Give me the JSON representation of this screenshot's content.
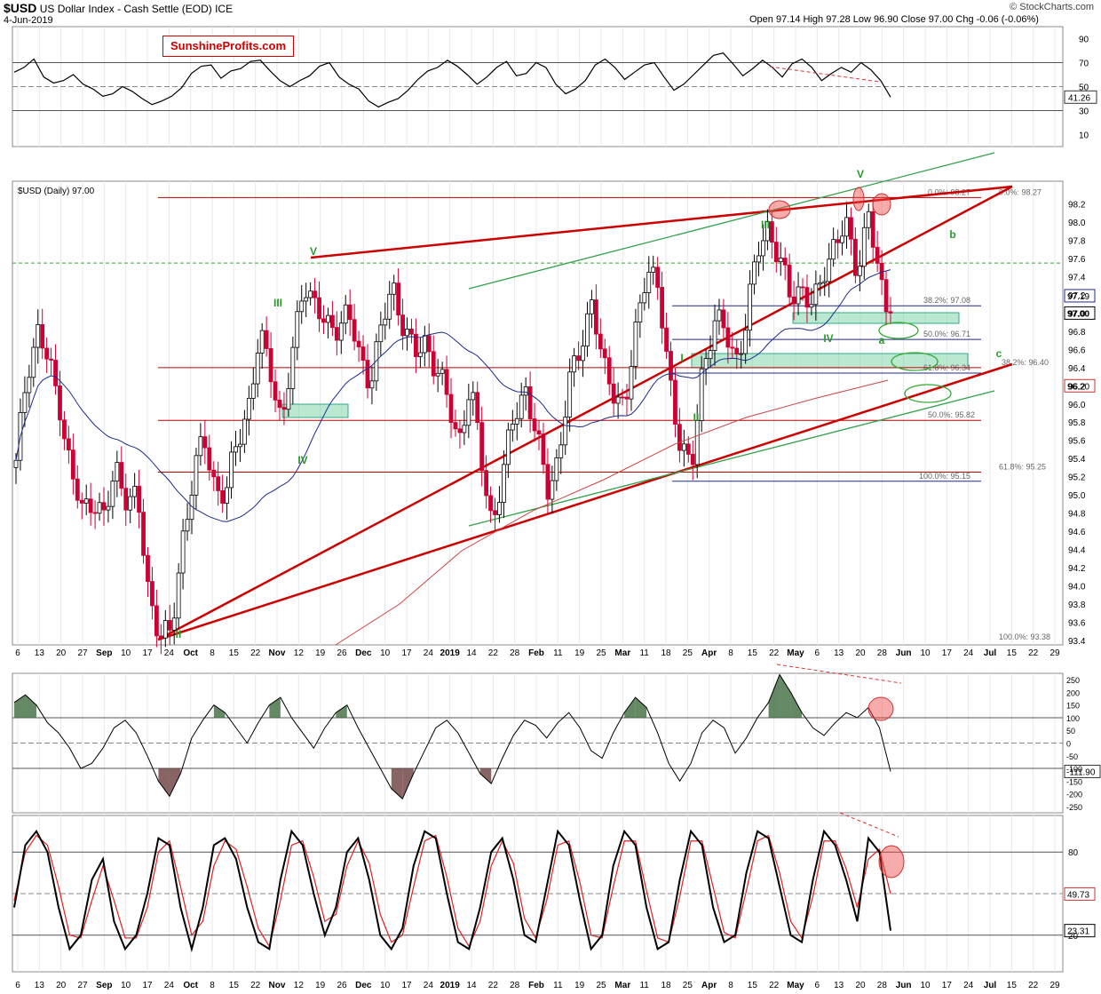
{
  "header": {
    "symbol": "$USD",
    "name": "US Dollar Index - Cash Settle (EOD)  ICE",
    "date": "4-Jun-2019",
    "ohlc": "Open 97.14  High 97.28  Low 96.90  Close 97.00  Chg -0.06 (-0.06%)",
    "credit": "© StockCharts.com",
    "brand": "SunshineProfits.com",
    "price_legend": "$USD (Daily) 97.00"
  },
  "x_axis_labels": [
    "6",
    "13",
    "20",
    "27",
    "Sep",
    "10",
    "17",
    "24",
    "Oct",
    "8",
    "15",
    "22",
    "Nov",
    "12",
    "19",
    "26",
    "Dec",
    "10",
    "17",
    "24",
    "2019",
    "14",
    "22",
    "28",
    "Feb",
    "11",
    "19",
    "25",
    "Mar",
    "11",
    "18",
    "25",
    "Apr",
    "8",
    "15",
    "22",
    "May",
    "6",
    "13",
    "20",
    "28",
    "Jun",
    "10",
    "17",
    "24",
    "Jul",
    "15",
    "22",
    "29"
  ],
  "chart_data": [
    {
      "type": "line",
      "panel": "RSI",
      "y_ticks": [
        90,
        70,
        50,
        30,
        10
      ],
      "reference_lines": [
        70,
        50,
        30
      ],
      "last_value_label": "41.26",
      "values": [
        62,
        66,
        73,
        58,
        53,
        55,
        60,
        52,
        48,
        42,
        44,
        50,
        46,
        40,
        35,
        38,
        42,
        49,
        61,
        67,
        68,
        57,
        63,
        65,
        71,
        72,
        63,
        55,
        50,
        55,
        59,
        67,
        70,
        58,
        52,
        48,
        38,
        33,
        37,
        40,
        47,
        56,
        63,
        66,
        72,
        67,
        60,
        52,
        58,
        66,
        71,
        59,
        61,
        70,
        66,
        52,
        44,
        48,
        55,
        68,
        73,
        66,
        56,
        62,
        68,
        70,
        58,
        47,
        52,
        60,
        68,
        76,
        78,
        69,
        59,
        65,
        72,
        66,
        58,
        69,
        73,
        66,
        55,
        61,
        66,
        62,
        70,
        64,
        55,
        41.26
      ]
    },
    {
      "type": "candlestick",
      "panel": "price",
      "y_ticks": [
        98.2,
        98.0,
        97.8,
        97.6,
        97.4,
        97.2,
        97.0,
        96.8,
        96.6,
        96.4,
        96.2,
        96.0,
        95.8,
        95.6,
        95.4,
        95.2,
        95.0,
        94.8,
        94.6,
        94.4,
        94.2,
        94.0,
        93.8,
        93.6,
        93.4
      ],
      "y_range": [
        93.35,
        98.45
      ],
      "last_price": "97.00",
      "price_tags": [
        "97.19",
        "96.20"
      ],
      "close_path": [
        95.3,
        96.4,
        96.8,
        96.4,
        96.0,
        95.2,
        94.8,
        95.0,
        94.7,
        95.3,
        95.0,
        94.9,
        93.9,
        93.5,
        93.4,
        94.5,
        95.2,
        95.6,
        95.1,
        95.0,
        95.6,
        96.0,
        96.7,
        96.4,
        95.8,
        96.5,
        97.4,
        97.1,
        96.8,
        96.9,
        97.0,
        96.5,
        96.3,
        96.8,
        97.3,
        96.9,
        96.5,
        96.7,
        96.4,
        96.0,
        95.6,
        96.2,
        95.4,
        94.7,
        95.2,
        95.9,
        96.2,
        95.6,
        95.1,
        95.4,
        96.2,
        96.7,
        97.1,
        96.4,
        96.2,
        95.9,
        96.8,
        97.6,
        97.2,
        96.3,
        95.6,
        95.2,
        96.4,
        96.9,
        96.8,
        96.5,
        96.9,
        97.7,
        98.0,
        97.5,
        97.2,
        97.3,
        97.0,
        97.5,
        97.8,
        97.9,
        97.5,
        98.1,
        97.3,
        97.0
      ],
      "fib_lines": [
        {
          "label": "0.0%: 98.27",
          "value": 98.27
        },
        {
          "label": "0.0%: 98.27",
          "value": 98.27
        },
        {
          "label": "38.2%: 97.08",
          "value": 97.08
        },
        {
          "label": "50.0%: 96.71",
          "value": 96.71
        },
        {
          "label": "61.8%: 96.34",
          "value": 96.34
        },
        {
          "label": "38.2%: 96.40",
          "value": 96.4
        },
        {
          "label": "50.0%: 95.82",
          "value": 95.82
        },
        {
          "label": "61.8%: 95.25",
          "value": 95.25
        },
        {
          "label": "100.0%: 95.15",
          "value": 95.15
        },
        {
          "label": "100.0%: 93.38",
          "value": 93.38
        }
      ],
      "reference_levels": [
        97.55
      ],
      "wave_labels": [
        "V",
        "III",
        "IV",
        "II",
        "V",
        "III",
        "IV",
        "I",
        "II",
        "V",
        "III",
        "IV",
        "a",
        "b",
        "c"
      ],
      "moving_averages": [
        "50-day",
        "200-day"
      ],
      "colors": {
        "up": "#000000",
        "down": "#cc0033",
        "support": "#66cc99",
        "resistance": "#cc0000",
        "channel": "#33a04a"
      }
    },
    {
      "type": "area",
      "panel": "CCI",
      "y_ticks": [
        250,
        200,
        150,
        100,
        50,
        0,
        -50,
        -100,
        -150,
        -200,
        -250
      ],
      "reference_lines": [
        100,
        0,
        -100
      ],
      "last_value_label": "-111.90",
      "values": [
        160,
        190,
        150,
        80,
        40,
        -20,
        -100,
        -80,
        -20,
        60,
        90,
        40,
        -50,
        -150,
        -210,
        -120,
        20,
        90,
        150,
        120,
        60,
        0,
        80,
        150,
        180,
        100,
        40,
        -20,
        60,
        120,
        150,
        60,
        -20,
        -100,
        -180,
        -220,
        -120,
        -30,
        60,
        90,
        40,
        -40,
        -120,
        -160,
        -60,
        30,
        90,
        70,
        20,
        80,
        120,
        60,
        -30,
        -60,
        40,
        120,
        180,
        140,
        40,
        -80,
        -150,
        -80,
        40,
        90,
        60,
        -40,
        20,
        100,
        160,
        270,
        200,
        120,
        60,
        30,
        80,
        120,
        100,
        140,
        60,
        -111.9
      ]
    },
    {
      "type": "line",
      "panel": "Stochastic",
      "y_ticks": [
        80,
        20
      ],
      "reference_lines": [
        80,
        50,
        20
      ],
      "last_value_labels": [
        "49.73",
        "23.31"
      ],
      "series": [
        {
          "values": [
            40,
            85,
            95,
            80,
            40,
            10,
            20,
            60,
            75,
            30,
            10,
            20,
            50,
            90,
            85,
            40,
            10,
            40,
            85,
            90,
            75,
            40,
            15,
            10,
            60,
            95,
            85,
            50,
            20,
            40,
            80,
            90,
            60,
            20,
            10,
            25,
            70,
            95,
            90,
            50,
            15,
            10,
            40,
            80,
            90,
            60,
            20,
            15,
            55,
            95,
            85,
            45,
            10,
            20,
            70,
            95,
            85,
            40,
            10,
            15,
            60,
            95,
            85,
            40,
            15,
            20,
            65,
            95,
            90,
            55,
            20,
            15,
            60,
            95,
            85,
            60,
            30,
            90,
            80,
            23.31
          ]
        },
        {
          "values": [
            45,
            80,
            92,
            85,
            55,
            20,
            18,
            45,
            70,
            45,
            18,
            18,
            40,
            80,
            88,
            55,
            20,
            30,
            70,
            88,
            82,
            55,
            25,
            12,
            45,
            85,
            88,
            62,
            30,
            35,
            70,
            88,
            72,
            35,
            15,
            20,
            55,
            88,
            92,
            62,
            25,
            12,
            30,
            70,
            88,
            72,
            32,
            18,
            45,
            85,
            88,
            58,
            20,
            18,
            55,
            88,
            88,
            52,
            18,
            15,
            48,
            88,
            88,
            55,
            22,
            18,
            52,
            88,
            92,
            65,
            30,
            18,
            48,
            88,
            88,
            68,
            40,
            75,
            82,
            49.73
          ]
        }
      ]
    }
  ]
}
